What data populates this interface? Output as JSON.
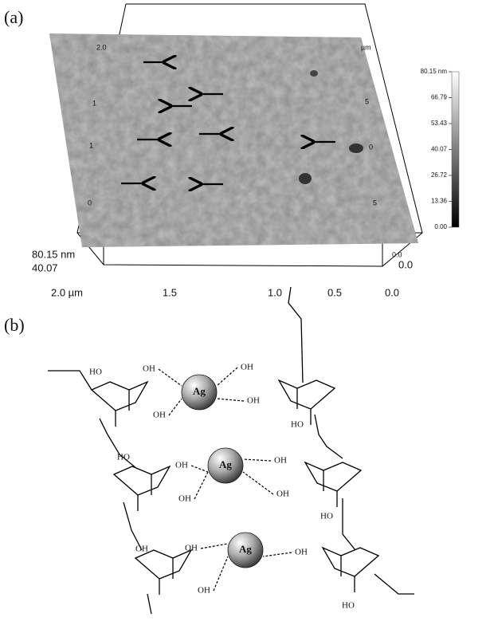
{
  "panel_a": {
    "label": "(a)",
    "x_ticks": [
      "2.0 µm",
      "1.5",
      "1.0",
      "0.5",
      "0.0"
    ],
    "z_labels": [
      "80.15 nm",
      "40.07",
      "0.0"
    ],
    "left_ticks": [
      "2.0",
      "1",
      "1",
      "0"
    ],
    "right_ticks": [
      "µm",
      "5",
      "0",
      "5",
      "0.0"
    ],
    "colorbar": [
      "80.15 nm",
      "66.79",
      "53.43",
      "40.07",
      "26.72",
      "13.36",
      "0.00"
    ]
  },
  "panel_b": {
    "label": "(b)",
    "ag": [
      "Ag",
      "Ag",
      "Ag"
    ],
    "oh": [
      "HO",
      "OH",
      "OH",
      "OH",
      "OH",
      "HO",
      "HO",
      "OH",
      "OH",
      "OH",
      "OH",
      "HO",
      "OH",
      "OH",
      "OH",
      "OH",
      "HO"
    ]
  }
}
